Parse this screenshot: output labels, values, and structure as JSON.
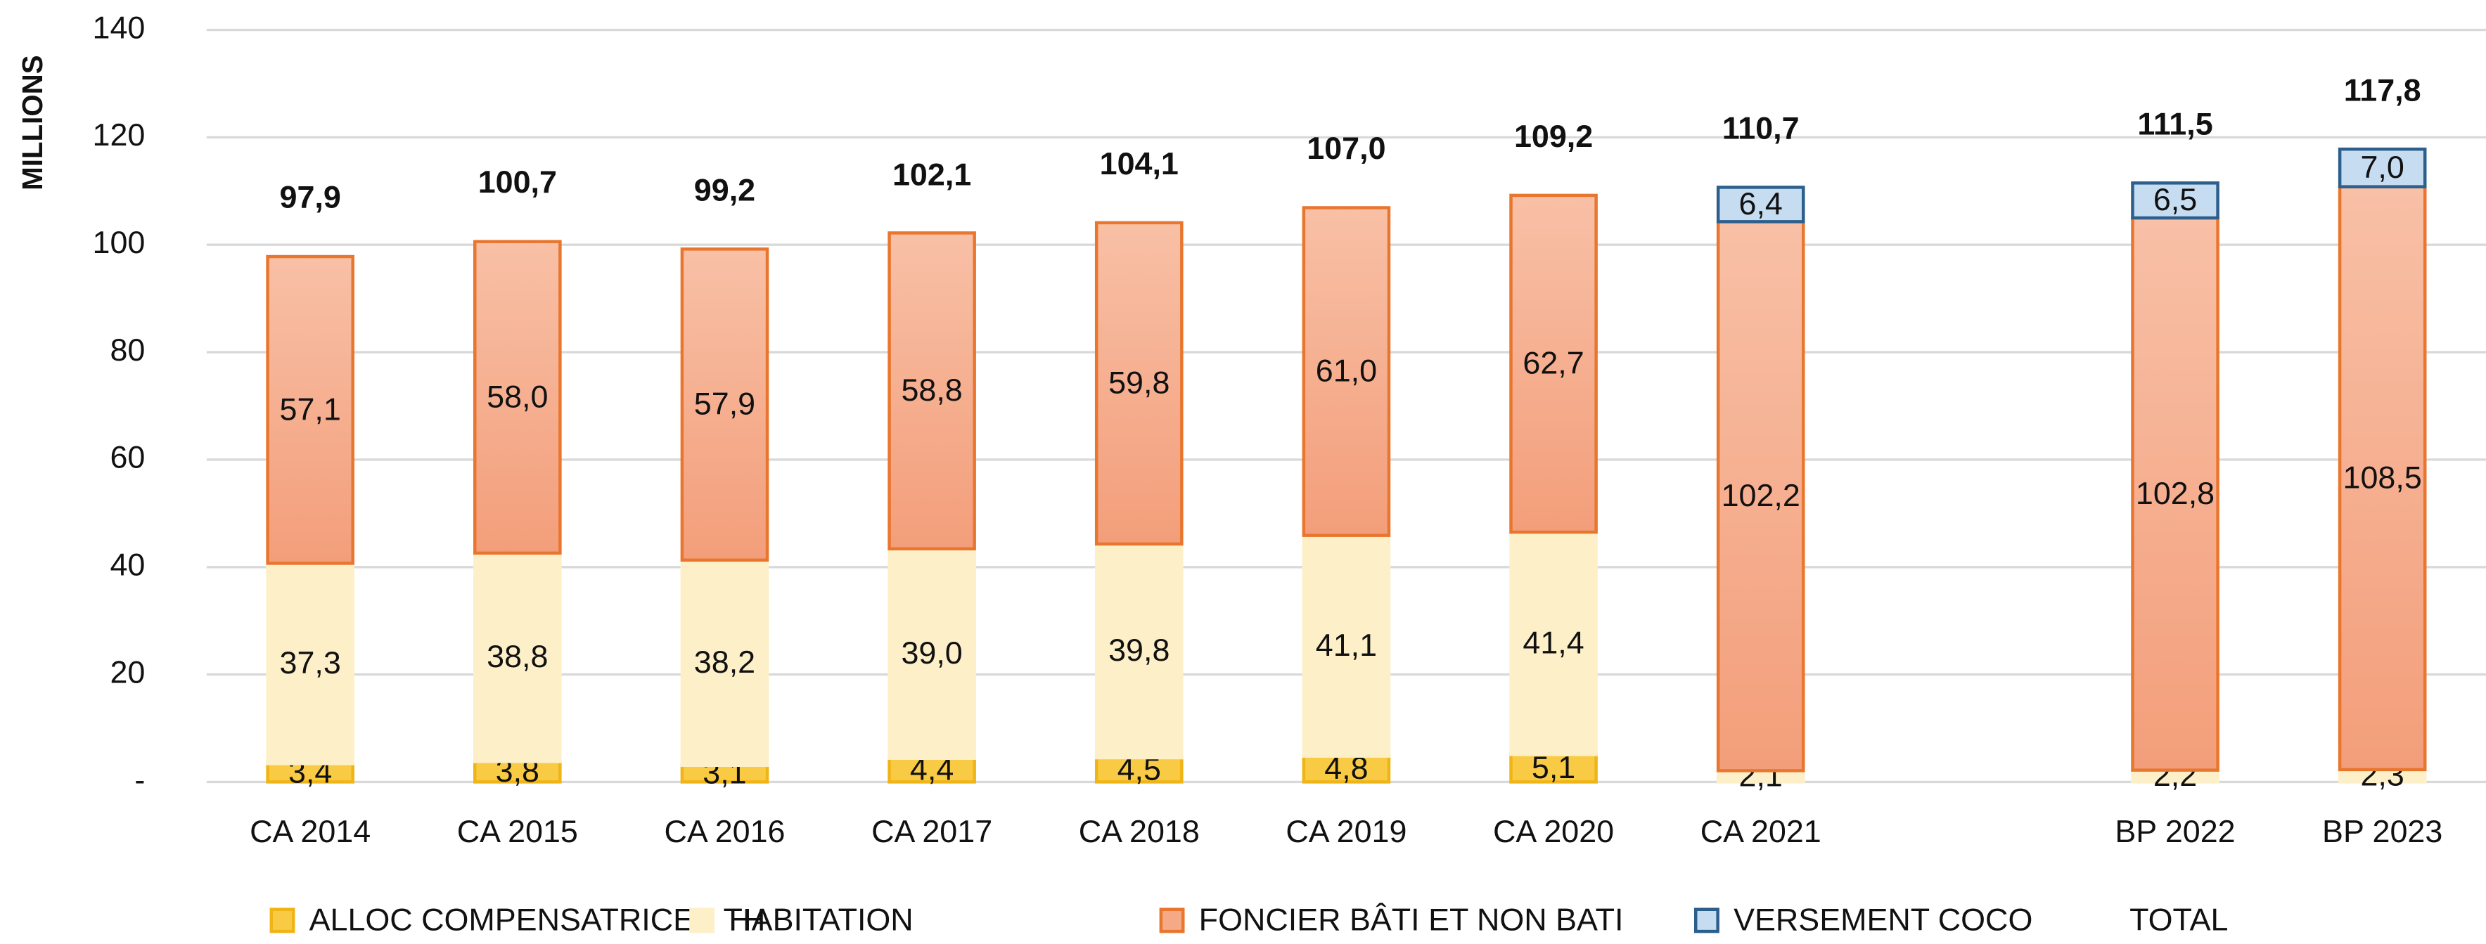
{
  "chart_data": {
    "type": "stacked_bar",
    "y_label": "MILLIONS",
    "categories": [
      "CA 2014",
      "CA 2015",
      "CA 2016",
      "CA 2017",
      "CA 2018",
      "CA 2019",
      "CA 2020",
      "CA 2021",
      null,
      "BP 2022",
      "BP 2023"
    ],
    "ylim": [
      0,
      140
    ],
    "yticks": [
      {
        "value": 0,
        "label": "-"
      },
      20,
      40,
      60,
      80,
      100,
      120,
      140
    ],
    "grid": true,
    "series": [
      {
        "name": "ALLOC COMPENSATRICES TH",
        "color": "#f9cb45",
        "stroke": "#efb416",
        "values": [
          3.4,
          3.8,
          3.1,
          4.4,
          4.5,
          4.8,
          5.1,
          null,
          null,
          null,
          null
        ],
        "value_labels": [
          "3,4",
          "3,8",
          "3,1",
          "4,4",
          "4,5",
          "4,8",
          "5,1",
          null,
          null,
          null,
          null
        ]
      },
      {
        "name": "HABITATION",
        "color": "#fdf0c9",
        "stroke": "#fdf0c9",
        "values": [
          37.3,
          38.8,
          38.2,
          39.0,
          39.8,
          41.1,
          41.4,
          2.1,
          null,
          2.2,
          2.3
        ],
        "value_labels": [
          "37,3",
          "38,8",
          "38,2",
          "39,0",
          "39,8",
          "41,1",
          "41,4",
          "2,1",
          null,
          "2,2",
          "2,3"
        ]
      },
      {
        "name": "FONCIER BÂTI ET NON BATI",
        "color": "#f5a985",
        "stroke": "#e9762f",
        "values": [
          57.1,
          58.0,
          57.9,
          58.8,
          59.8,
          61.0,
          62.7,
          102.2,
          null,
          102.8,
          108.5
        ],
        "value_labels": [
          "57,1",
          "58,0",
          "57,9",
          "58,8",
          "59,8",
          "61,0",
          "62,7",
          "102,2",
          null,
          "102,8",
          "108,5"
        ]
      },
      {
        "name": "VERSEMENT COCO",
        "color": "#c6dcf0",
        "stroke": "#2d5f8c",
        "values": [
          null,
          null,
          null,
          null,
          null,
          null,
          null,
          6.4,
          null,
          6.5,
          7.0
        ],
        "value_labels": [
          null,
          null,
          null,
          null,
          null,
          null,
          null,
          "6,4",
          null,
          "6,5",
          "7,0"
        ]
      }
    ],
    "total": {
      "name": "TOTAL",
      "values": [
        97.9,
        100.7,
        99.2,
        102.1,
        104.1,
        107.0,
        109.2,
        110.7,
        null,
        111.5,
        117.8
      ],
      "value_labels": [
        "97,9",
        "100,7",
        "99,2",
        "102,1",
        "104,1",
        "107,0",
        "109,2",
        "110,7",
        null,
        "111,5",
        "117,8"
      ]
    }
  }
}
